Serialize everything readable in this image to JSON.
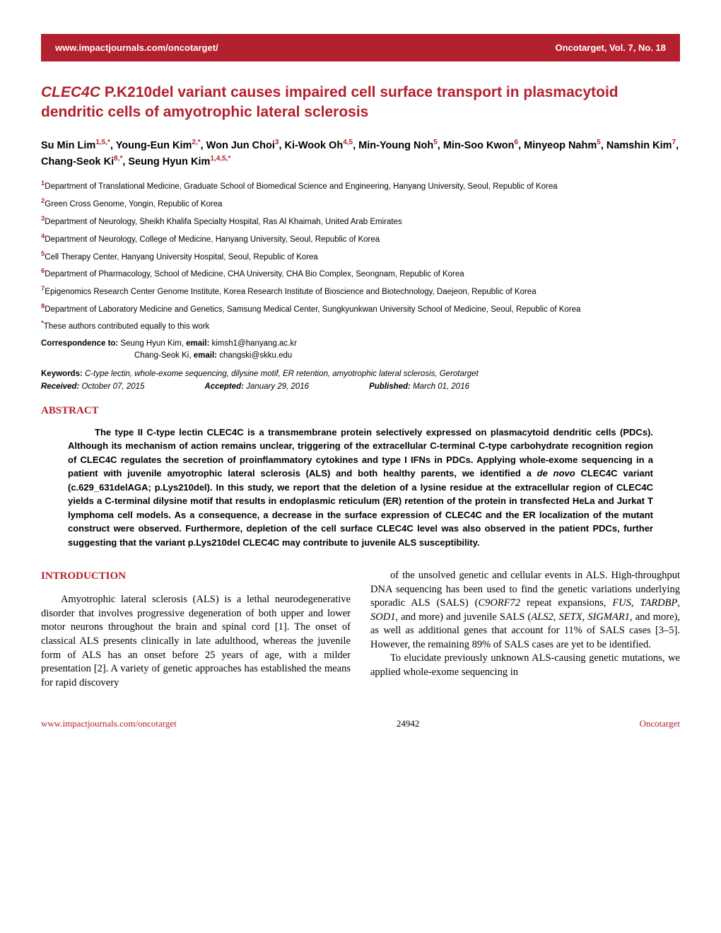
{
  "header": {
    "url": "www.impactjournals.com/oncotarget/",
    "journal_issue": "Oncotarget, Vol. 7, No. 18"
  },
  "title": {
    "gene": "CLEC4C",
    "rest": " P.K210del variant causes impaired cell surface transport in plasmacytoid dendritic cells of amyotrophic lateral sclerosis"
  },
  "authors_html": "Su Min Lim|1,5,*|, Young-Eun Kim|2,*|, Won Jun Choi|3|, Ki-Wook Oh|4,5|, Min-Young Noh|5|, Min-Soo Kwon|6|, Minyeop Nahm|5|, Namshin Kim|7|, Chang-Seok Ki|8,*|, Seung Hyun Kim|1,4,5,*|",
  "affiliations": [
    {
      "num": "1",
      "text": "Department of Translational Medicine, Graduate School of Biomedical Science and Engineering, Hanyang University, Seoul, Republic of Korea"
    },
    {
      "num": "2",
      "text": "Green Cross Genome, Yongin, Republic of Korea"
    },
    {
      "num": "3",
      "text": "Department of Neurology, Sheikh Khalifa Specialty Hospital, Ras Al Khaimah, United Arab Emirates"
    },
    {
      "num": "4",
      "text": "Department of Neurology, College of Medicine, Hanyang University, Seoul, Republic of Korea"
    },
    {
      "num": "5",
      "text": "Cell Therapy Center, Hanyang University Hospital, Seoul, Republic of Korea"
    },
    {
      "num": "6",
      "text": "Department of Pharmacology, School of Medicine, CHA University, CHA Bio Complex, Seongnam, Republic of Korea"
    },
    {
      "num": "7",
      "text": "Epigenomics Research Center Genome Institute, Korea Research Institute of Bioscience and Biotechnology, Daejeon, Republic of Korea"
    },
    {
      "num": "8",
      "text": "Department of Laboratory Medicine and Genetics, Samsung Medical Center, Sungkyunkwan University School of Medicine, Seoul, Republic of Korea"
    }
  ],
  "equal_contrib": "These authors contributed equally to this work",
  "correspondence": {
    "label": "Correspondence to:",
    "line1_name": " Seung Hyun Kim, ",
    "line1_email_label": "email:",
    "line1_email": " kimsh1@hanyang.ac.kr",
    "line2_name": "Chang-Seok Ki, ",
    "line2_email_label": "email:",
    "line2_email": " changski@skku.edu"
  },
  "keywords": {
    "label": "Keywords:",
    "content": " C-type lectin, whole-exome sequencing, dilysine motif, ER retention, amyotrophic lateral sclerosis, Gerotarget"
  },
  "dates": {
    "received_label": "Received:",
    "received": " October 07, 2015",
    "accepted_label": "Accepted:",
    "accepted": " January 29, 2016",
    "published_label": "Published:",
    "published": " March 01, 2016"
  },
  "abstract": {
    "heading": "ABSTRACT",
    "p1_a": "The type II C-type lectin CLEC4C is a transmembrane protein selectively expressed on plasmacytoid dendritic cells (PDCs). Although its mechanism of action remains unclear, triggering of the extracellular C-terminal C-type carbohydrate recognition region of CLEC4C regulates the secretion of proinflammatory cytokines and type I IFNs in PDCs. Applying whole-exome sequencing in a patient with juvenile amyotrophic lateral sclerosis (ALS) and both healthy parents, we identified a ",
    "p1_denovo": "de novo",
    "p1_b": " CLEC4C variant (c.629_631delAGA; p.Lys210del). In this study, we report that the deletion of a lysine residue at the extracellular region of CLEC4C yields a C-terminal dilysine motif that results in endoplasmic reticulum (ER) retention of the protein in transfected HeLa and Jurkat T lymphoma cell models. As a consequence, a decrease in the surface expression of CLEC4C and the ER localization of the mutant construct were observed. Furthermore, depletion of the cell surface CLEC4C level was also observed in the patient PDCs, further suggesting that the variant p.Lys210del CLEC4C may contribute to juvenile ALS susceptibility."
  },
  "introduction": {
    "heading": "INTRODUCTION",
    "col1_p1": "Amyotrophic lateral sclerosis (ALS) is a lethal neurodegenerative disorder that involves progressive degeneration of both upper and lower motor neurons throughout the brain and spinal cord [1]. The onset of classical ALS presents clinically in late adulthood, whereas the juvenile form of ALS has an onset before 25 years of age, with a milder presentation [2]. A variety of genetic approaches has established the means for rapid discovery",
    "col2_p1_a": "of the unsolved genetic and cellular events in ALS. High-throughput DNA sequencing has been used to find the genetic variations underlying sporadic ALS (SALS) (",
    "col2_p1_c9": "C9ORF72",
    "col2_p1_b": " repeat expansions, ",
    "col2_p1_fus": "FUS",
    "col2_p1_c": ", ",
    "col2_p1_tardbp": "TARDBP",
    "col2_p1_d": ", ",
    "col2_p1_sod1": "SOD1",
    "col2_p1_e": ", and more) and juvenile SALS (",
    "col2_p1_als2": "ALS2",
    "col2_p1_f": ", ",
    "col2_p1_setx": "SETX",
    "col2_p1_g": ", ",
    "col2_p1_sigmar1": "SIGMAR1",
    "col2_p1_h": ", and more), as well as additional genes that account for 11% of SALS cases [3–5]. However, the remaining 89% of SALS cases are yet to be identified.",
    "col2_p2": "To elucidate previously unknown ALS-causing genetic mutations, we applied whole-exome sequencing in"
  },
  "footer": {
    "url": "www.impactjournals.com/oncotarget",
    "page": "24942",
    "journal": "Oncotarget"
  },
  "colors": {
    "brand": "#b3202e",
    "text": "#000000",
    "background": "#ffffff"
  }
}
